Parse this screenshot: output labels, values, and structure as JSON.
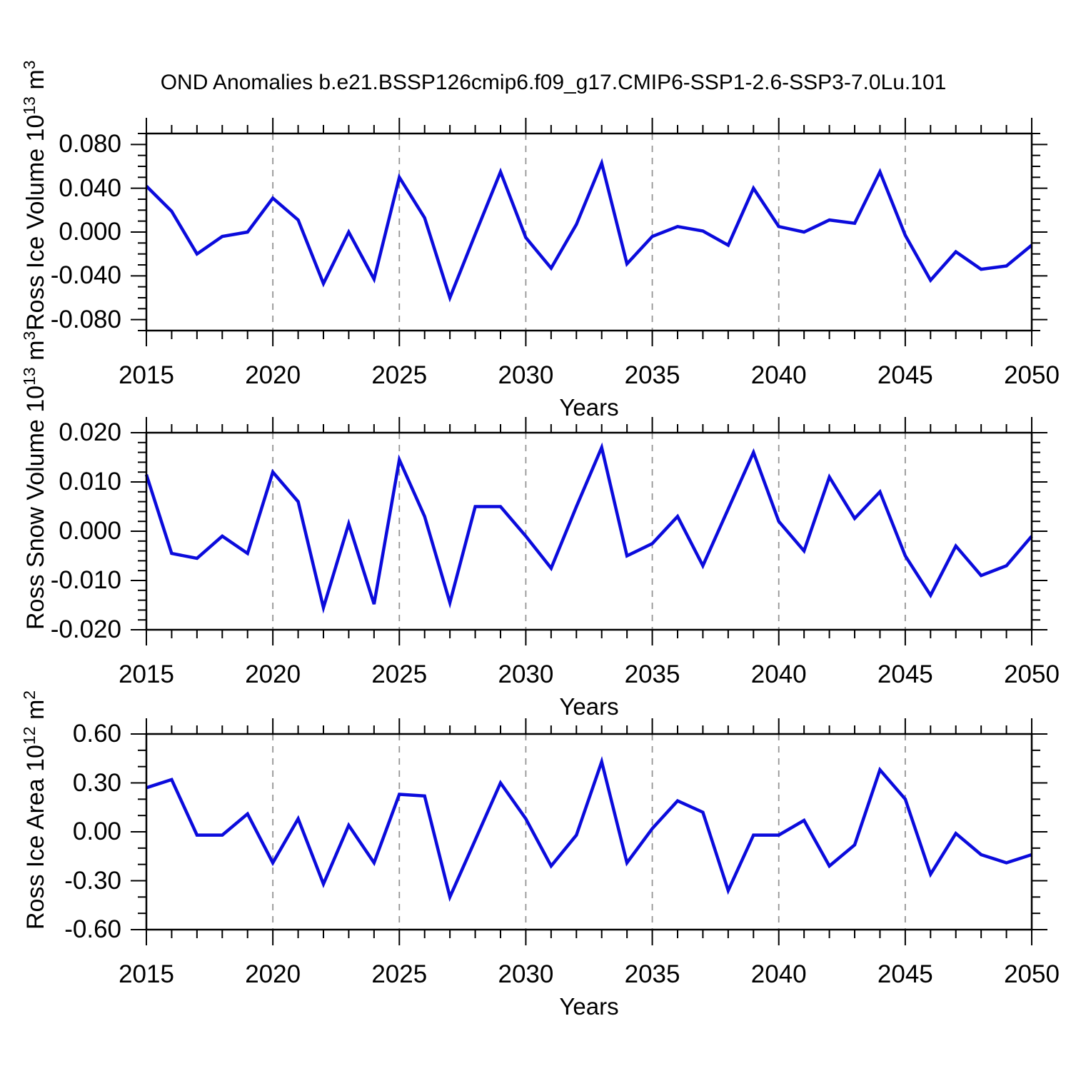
{
  "title": "OND Anomalies b.e21.BSSP126cmip6.f09_g17.CMIP6-SSP1-2.6-SSP3-7.0Lu.101",
  "colors": {
    "line": "#0b0bdc",
    "grid": "#949494",
    "axis": "#000000",
    "background": "#ffffff"
  },
  "xticks": {
    "years": [
      2015,
      2020,
      2025,
      2030,
      2035,
      2040,
      2045,
      2050
    ],
    "labels": [
      "2015",
      "2020",
      "2025",
      "2030",
      "2035",
      "2040",
      "2045",
      "2050"
    ]
  },
  "chart_data": [
    {
      "type": "line",
      "series_name": "ross-ice-volume",
      "ylabel_text": "Ross Ice Volume 10^13 m^3",
      "ylabel_parts": [
        {
          "t": "Ross Ice Volume 10"
        },
        {
          "t": "13",
          "sup": true
        },
        {
          "t": " m"
        },
        {
          "t": "3",
          "sup": true
        }
      ],
      "xlabel": "Years",
      "x": [
        2015,
        2016,
        2017,
        2018,
        2019,
        2020,
        2021,
        2022,
        2023,
        2024,
        2025,
        2026,
        2027,
        2028,
        2029,
        2030,
        2031,
        2032,
        2033,
        2034,
        2035,
        2036,
        2037,
        2038,
        2039,
        2040,
        2041,
        2042,
        2043,
        2044,
        2045,
        2046,
        2047,
        2048,
        2049,
        2050
      ],
      "values": [
        0.042,
        0.019,
        -0.02,
        -0.004,
        0.0,
        0.031,
        0.011,
        -0.047,
        0.0,
        -0.043,
        0.05,
        0.013,
        -0.06,
        -0.002,
        0.055,
        -0.005,
        -0.033,
        0.007,
        0.063,
        -0.029,
        -0.004,
        0.005,
        0.001,
        -0.012,
        0.04,
        0.005,
        0.0,
        0.011,
        0.008,
        0.055,
        -0.003,
        -0.044,
        -0.018,
        -0.034,
        -0.031,
        -0.012
      ],
      "ylim": [
        -0.09,
        0.09
      ],
      "xlim": [
        2015,
        2050
      ],
      "ytick_values": [
        0.08,
        0.04,
        0.0,
        -0.04,
        -0.08
      ],
      "ytick_labels": [
        "0.080",
        "0.040",
        "0.000",
        "-0.040",
        "-0.080"
      ],
      "ytick_major": 0.04,
      "ytick_minor": 0.01,
      "grid_years": [
        2020,
        2025,
        2030,
        2035,
        2040,
        2045
      ],
      "grid_on": "vertical-dashed"
    },
    {
      "type": "line",
      "series_name": "ross-snow-volume",
      "ylabel_text": "Ross Snow Volume 10^13 m^3",
      "ylabel_parts": [
        {
          "t": "Ross Snow Volume 10"
        },
        {
          "t": "13",
          "sup": true
        },
        {
          "t": " m"
        },
        {
          "t": "3",
          "sup": true
        }
      ],
      "xlabel": "Years",
      "x": [
        2015,
        2016,
        2017,
        2018,
        2019,
        2020,
        2021,
        2022,
        2023,
        2024,
        2025,
        2026,
        2027,
        2028,
        2029,
        2030,
        2031,
        2032,
        2033,
        2034,
        2035,
        2036,
        2037,
        2038,
        2039,
        2040,
        2041,
        2042,
        2043,
        2044,
        2045,
        2046,
        2047,
        2048,
        2049,
        2050
      ],
      "values": [
        0.0115,
        -0.0045,
        -0.0055,
        -0.001,
        -0.0045,
        0.012,
        0.006,
        -0.0155,
        0.0015,
        -0.0148,
        0.0145,
        0.003,
        -0.0145,
        0.005,
        0.005,
        -0.001,
        -0.0075,
        0.005,
        0.017,
        -0.005,
        -0.0025,
        0.003,
        -0.007,
        0.0045,
        0.016,
        0.002,
        -0.004,
        0.011,
        0.0026,
        0.008,
        -0.005,
        -0.013,
        -0.003,
        -0.009,
        -0.007,
        -0.001
      ],
      "ylim": [
        -0.02,
        0.02
      ],
      "xlim": [
        2015,
        2050
      ],
      "ytick_values": [
        0.02,
        0.01,
        0.0,
        -0.01,
        -0.02
      ],
      "ytick_labels": [
        "0.020",
        "0.010",
        "0.000",
        "-0.010",
        "-0.020"
      ],
      "ytick_major": 0.01,
      "ytick_minor": 0.002,
      "grid_years": [
        2020,
        2025,
        2030,
        2035,
        2040,
        2045
      ],
      "grid_on": "vertical-dashed"
    },
    {
      "type": "line",
      "series_name": "ross-ice-area",
      "ylabel_text": "Ross Ice Area 10^12 m^2",
      "ylabel_parts": [
        {
          "t": "Ross Ice Area 10"
        },
        {
          "t": "12",
          "sup": true
        },
        {
          "t": " m"
        },
        {
          "t": "2",
          "sup": true
        }
      ],
      "xlabel": "Years",
      "x": [
        2015,
        2016,
        2017,
        2018,
        2019,
        2020,
        2021,
        2022,
        2023,
        2024,
        2025,
        2026,
        2027,
        2028,
        2029,
        2030,
        2031,
        2032,
        2033,
        2034,
        2035,
        2036,
        2037,
        2038,
        2039,
        2040,
        2041,
        2042,
        2043,
        2044,
        2045,
        2046,
        2047,
        2048,
        2049,
        2050
      ],
      "values": [
        0.27,
        0.32,
        -0.02,
        -0.02,
        0.11,
        -0.19,
        0.08,
        -0.32,
        0.04,
        -0.19,
        0.23,
        0.22,
        -0.4,
        -0.05,
        0.3,
        0.08,
        -0.21,
        -0.02,
        0.43,
        -0.19,
        0.02,
        0.19,
        0.12,
        -0.36,
        -0.02,
        -0.02,
        0.07,
        -0.21,
        -0.08,
        0.38,
        0.2,
        -0.26,
        -0.01,
        -0.14,
        -0.19,
        -0.14
      ],
      "ylim": [
        -0.6,
        0.6
      ],
      "xlim": [
        2015,
        2050
      ],
      "ytick_values": [
        0.6,
        0.3,
        0.0,
        -0.3,
        -0.6
      ],
      "ytick_labels": [
        "0.60",
        "0.30",
        "0.00",
        "-0.30",
        "-0.60"
      ],
      "ytick_major": 0.3,
      "ytick_minor": 0.1,
      "grid_years": [
        2020,
        2025,
        2030,
        2035,
        2040,
        2045
      ],
      "grid_on": "vertical-dashed"
    }
  ]
}
